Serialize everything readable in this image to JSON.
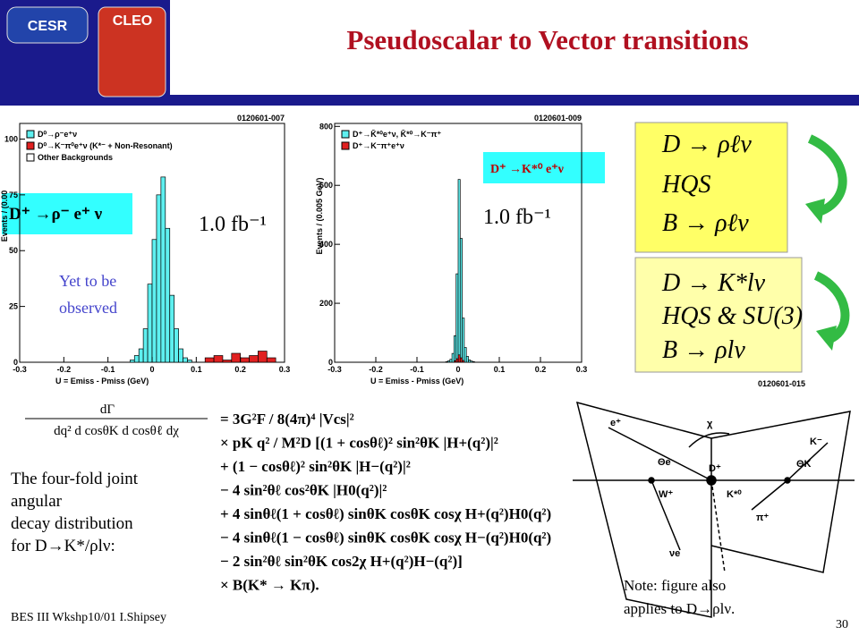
{
  "header": {
    "title": "Pseudoscalar to Vector transitions",
    "logo_left": "CESR",
    "logo_right": "CLEO"
  },
  "chart_data": [
    {
      "type": "histogram",
      "plot_id": "0120601-007",
      "xlabel": "U = Emiss - Pmiss (GeV)",
      "ylabel": "Events / (0.00",
      "xlim": [
        -0.3,
        0.3
      ],
      "xticks": [
        -0.3,
        -0.2,
        -0.1,
        0,
        0.1,
        0.2,
        0.3
      ],
      "ylim": [
        0,
        107
      ],
      "yticks": [
        0,
        25,
        50,
        75,
        100
      ],
      "series": [
        {
          "name": "D⁰→ρ⁻e⁺ν",
          "color": "#5ef0f0",
          "bins": [
            -0.05,
            -0.04,
            -0.03,
            -0.02,
            -0.01,
            0,
            0.01,
            0.02,
            0.03,
            0.04,
            0.05,
            0.06,
            0.07,
            0.08,
            0.09,
            0.1
          ],
          "values": [
            1,
            3,
            6,
            15,
            35,
            55,
            75,
            83,
            60,
            30,
            15,
            6,
            2,
            1,
            0
          ]
        },
        {
          "name": "D⁰→K⁻π⁰e⁺ν (K*⁻ + Non-Resonant)",
          "color": "#e02020",
          "bins": [
            0.12,
            0.14,
            0.16,
            0.18,
            0.2,
            0.22,
            0.24,
            0.26,
            0.28
          ],
          "values": [
            2,
            3,
            1,
            4,
            2,
            3,
            5,
            2
          ]
        },
        {
          "name": "Other Backgrounds",
          "color": "#ffffff",
          "bins": [
            0,
            0.01
          ],
          "values": [
            0
          ]
        }
      ]
    },
    {
      "type": "histogram",
      "plot_id": "0120601-009",
      "xlabel": "U = Emiss - Pmiss (GeV)",
      "ylabel": "Events / (0.005 GeV)",
      "xlim": [
        -0.3,
        0.3
      ],
      "xticks": [
        -0.3,
        -0.2,
        -0.1,
        0,
        0.1,
        0.2,
        0.3
      ],
      "ylim": [
        0,
        810
      ],
      "yticks": [
        0,
        200,
        400,
        600,
        800
      ],
      "series": [
        {
          "name": "D⁺→K̄*⁰e⁺ν, K̄*⁰→K⁻π⁺",
          "color": "#5ef0f0",
          "bins": [
            -0.03,
            -0.025,
            -0.02,
            -0.015,
            -0.01,
            -0.005,
            0,
            0.005,
            0.01,
            0.015,
            0.02,
            0.025,
            0.03,
            0.035,
            0.04
          ],
          "values": [
            2,
            5,
            10,
            30,
            90,
            300,
            620,
            420,
            150,
            50,
            20,
            8,
            4,
            2
          ]
        },
        {
          "name": "D⁺→K⁻π⁺e⁺ν",
          "color": "#e02020",
          "bins": [
            -0.01,
            -0.005,
            0,
            0.005,
            0.01,
            0.015
          ],
          "values": [
            5,
            12,
            25,
            15,
            6
          ]
        }
      ]
    }
  ],
  "labels": {
    "left_decay": "D⁺ →ρ⁻ e⁺ ν",
    "right_decay": "D⁺ →K*⁰ e⁺ν",
    "lumi_left": "1.0 fb⁻¹",
    "lumi_right": "1.0 fb⁻¹",
    "unobserved": [
      "Yet to be",
      "observed"
    ]
  },
  "boxes": [
    {
      "lines": [
        "D → ρℓν",
        "HQS",
        "B → ρℓν"
      ]
    },
    {
      "lines": [
        "D → K*lν",
        "HQS & SU(3)",
        "B → ρlν"
      ]
    }
  ],
  "box_id": "0120601-015",
  "formula": {
    "lhs_num": "dΓ",
    "lhs_den": "dq² d cosθK d cosθℓ dχ",
    "lines": [
      "= 3G²F / 8(4π)⁴ |Vcs|²",
      "× pK q² / M²D [(1 + cosθℓ)² sin²θK |H+(q²)|²",
      "+ (1 − cosθℓ)² sin²θK |H−(q²)|²",
      "− 4 sin²θℓ cos²θK |H0(q²)|²",
      "+ 4 sinθℓ(1 + cosθℓ) sinθK cosθK cosχ H+(q²)H0(q²)",
      "− 4 sinθℓ(1 − cosθℓ) sinθK cosθK cosχ H−(q²)H0(q²)",
      "− 2 sin²θℓ sin²θK cos2χ H+(q²)H−(q²)]",
      "× B(K* → Kπ)."
    ]
  },
  "description": [
    "The four-fold joint",
    "angular",
    " decay distribution",
    " for D→K*/ρlν:"
  ],
  "diagram": {
    "labels": [
      "e⁺",
      "Θe",
      "W⁺",
      "D⁺",
      "K*⁰",
      "χ",
      "K⁻",
      "ΘK",
      "π⁺",
      "νe"
    ]
  },
  "note": [
    "Note: figure also",
    "applies to  D→ρlν."
  ],
  "footer": {
    "left": "BES III Wkshp10/01 I.Shipsey",
    "page": "30"
  }
}
